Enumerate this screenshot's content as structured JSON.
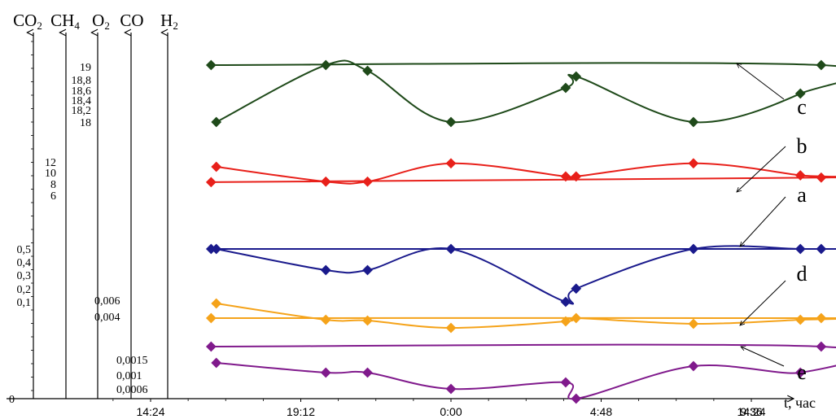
{
  "chart_data": {
    "type": "line",
    "xlabel": "t, час",
    "x_tick_labels": [
      "14:24",
      "19:12",
      "0:00",
      "4:48",
      "9:36",
      "14:24"
    ],
    "y_zero_label": "0",
    "grid": false,
    "axes": [
      {
        "label": "CO",
        "sub": "2",
        "ticks": [
          "0,5",
          "0,4",
          "0,3",
          "0,2",
          "0,1"
        ]
      },
      {
        "label": "CH",
        "sub": "4",
        "ticks": [
          "12",
          "10",
          "8",
          "6"
        ]
      },
      {
        "label": "O",
        "sub": "2",
        "ticks": [
          "19",
          "18,8",
          "18,6",
          "18,4",
          "18,2",
          "18"
        ]
      },
      {
        "label": "CO",
        "sub": "",
        "ticks": [
          "0,006",
          "0,004"
        ]
      },
      {
        "label": "H",
        "sub": "2",
        "ticks": [
          "0,0015",
          "0,001",
          "0,0006"
        ]
      }
    ],
    "series": [
      {
        "name": "c",
        "axis": "O2",
        "color": "#1f4a1a",
        "x": [
          "16:30",
          "20:00",
          "21:20",
          "0:00",
          "3:40",
          "4:00",
          "7:45",
          "11:10",
          "11:50",
          "16:20"
        ],
        "y": [
          18,
          19,
          18.9,
          18,
          18.6,
          18.8,
          18,
          18.5,
          19,
          19
        ]
      },
      {
        "name": "b",
        "axis": "CH4",
        "color": "#e8201a",
        "x": [
          "16:30",
          "20:00",
          "21:20",
          "0:00",
          "3:40",
          "4:00",
          "7:45",
          "11:10",
          "11:50",
          "16:20"
        ],
        "y": [
          11,
          8.4,
          8.4,
          11.6,
          9.3,
          9.3,
          11.6,
          9.5,
          9.1,
          8.3
        ]
      },
      {
        "name": "a",
        "axis": "CO2",
        "color": "#1a1a8c",
        "x": [
          "16:30",
          "20:00",
          "21:20",
          "0:00",
          "3:40",
          "4:00",
          "7:45",
          "11:10",
          "11:50",
          "16:20"
        ],
        "y": [
          0.5,
          0.34,
          0.34,
          0.5,
          0.1,
          0.2,
          0.5,
          0.5,
          0.5,
          0.5
        ]
      },
      {
        "name": "d",
        "axis": "CO",
        "color": "#f5a31a",
        "x": [
          "16:30",
          "20:00",
          "21:20",
          "0:00",
          "3:40",
          "4:00",
          "7:45",
          "11:10",
          "11:50",
          "16:20"
        ],
        "y": [
          0.0056,
          0.0036,
          0.0035,
          0.0026,
          0.0034,
          0.0038,
          0.0031,
          0.0036,
          0.0038,
          0.0038
        ]
      },
      {
        "name": "e",
        "axis": "H2",
        "color": "#801a8c",
        "x": [
          "16:30",
          "20:00",
          "21:20",
          "0:00",
          "3:40",
          "4:00",
          "7:45",
          "11:10",
          "11:50",
          "16:20"
        ],
        "y": [
          0.0014,
          0.0011,
          0.0011,
          0.0006,
          0.0008,
          0.0003,
          0.0013,
          0.0011,
          0.0019,
          0.0019
        ]
      }
    ]
  }
}
